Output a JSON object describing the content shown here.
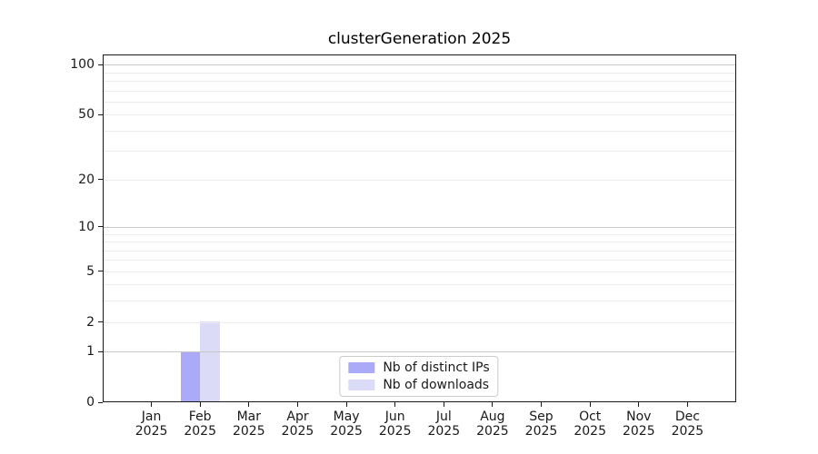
{
  "chart_data": {
    "type": "bar",
    "title": "clusterGeneration 2025",
    "categories": [
      "Jan",
      "Feb",
      "Mar",
      "Apr",
      "May",
      "Jun",
      "Jul",
      "Aug",
      "Sep",
      "Oct",
      "Nov",
      "Dec"
    ],
    "year_label": "2025",
    "series": [
      {
        "name": "Nb of distinct IPs",
        "color": "#aaaaf8",
        "values": [
          0,
          1,
          0,
          0,
          0,
          0,
          0,
          0,
          0,
          0,
          0,
          0
        ]
      },
      {
        "name": "Nb of downloads",
        "color": "#dbdbf8",
        "values": [
          0,
          2,
          0,
          0,
          0,
          0,
          0,
          0,
          0,
          0,
          0,
          0
        ]
      }
    ],
    "y_axis": {
      "scale": "log1p",
      "ticks": [
        0,
        1,
        2,
        5,
        10,
        20,
        50,
        100
      ],
      "ylim": [
        0,
        115
      ],
      "major_gridlines": [
        1,
        10,
        100
      ],
      "minor_gridlines": [
        2,
        3,
        4,
        5,
        6,
        7,
        8,
        9,
        20,
        30,
        40,
        50,
        60,
        70,
        80,
        90
      ]
    },
    "legend": {
      "position": "lower center"
    },
    "colors": {
      "grid_major": "#c9c9c9",
      "grid_minor": "#ececec",
      "spine": "#1a1a1a",
      "background": "#ffffff"
    }
  }
}
